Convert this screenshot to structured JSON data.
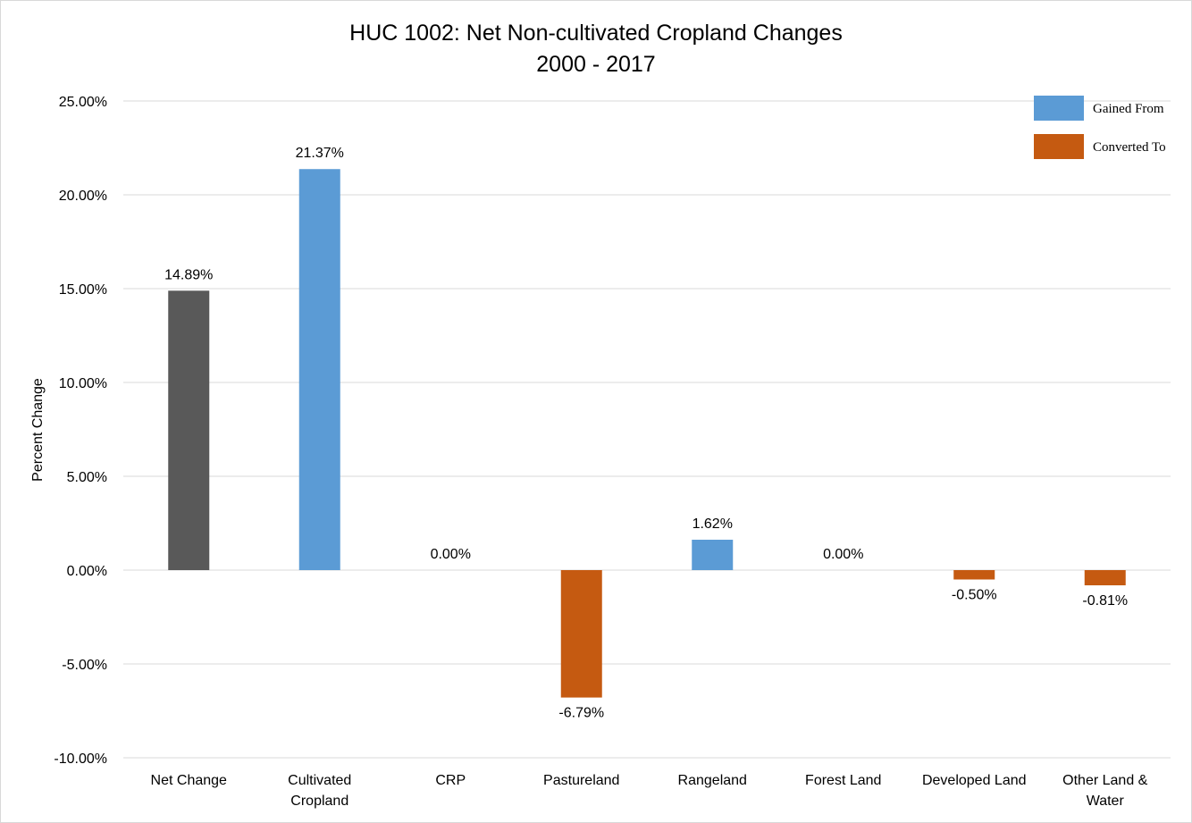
{
  "chart_data": {
    "type": "bar",
    "title": "HUC 1002: Net Non-cultivated Cropland Changes",
    "subtitle": "2000 - 2017",
    "ylabel": "Percent Change",
    "xlabel": "",
    "ylim": [
      -10,
      25
    ],
    "yticks": [
      25,
      20,
      15,
      10,
      5,
      0,
      -5,
      -10
    ],
    "ytick_labels": [
      "25.00%",
      "20.00%",
      "15.00%",
      "10.00%",
      "5.00%",
      "0.00%",
      "-5.00%",
      "-10.00%"
    ],
    "grid": true,
    "legend_position": "top-right",
    "categories": [
      "Net Change",
      "Cultivated Cropland",
      "CRP",
      "Pastureland",
      "Rangeland",
      "Forest Land",
      "Developed Land",
      "Other Land & Water"
    ],
    "category_lines": [
      [
        "Net Change"
      ],
      [
        "Cultivated",
        "Cropland"
      ],
      [
        "CRP"
      ],
      [
        "Pastureland"
      ],
      [
        "Rangeland"
      ],
      [
        "Forest Land"
      ],
      [
        "Developed Land"
      ],
      [
        "Other Land &",
        "Water"
      ]
    ],
    "values": [
      14.89,
      21.37,
      0.0,
      -6.79,
      1.62,
      0.0,
      -0.5,
      -0.81
    ],
    "value_labels": [
      "14.89%",
      "21.37%",
      "0.00%",
      "-6.79%",
      "1.62%",
      "0.00%",
      "-0.50%",
      "-0.81%"
    ],
    "bar_kinds": [
      "net",
      "gained",
      "gained",
      "converted",
      "gained",
      "gained",
      "converted",
      "converted"
    ],
    "legend": [
      {
        "name": "Gained From",
        "kind": "gained"
      },
      {
        "name": "Converted To",
        "kind": "converted"
      }
    ],
    "colors": {
      "net": "#595959",
      "gained": "#5b9bd5",
      "converted": "#c55a11",
      "grid": "#d9d9d9",
      "text": "#000000"
    }
  }
}
